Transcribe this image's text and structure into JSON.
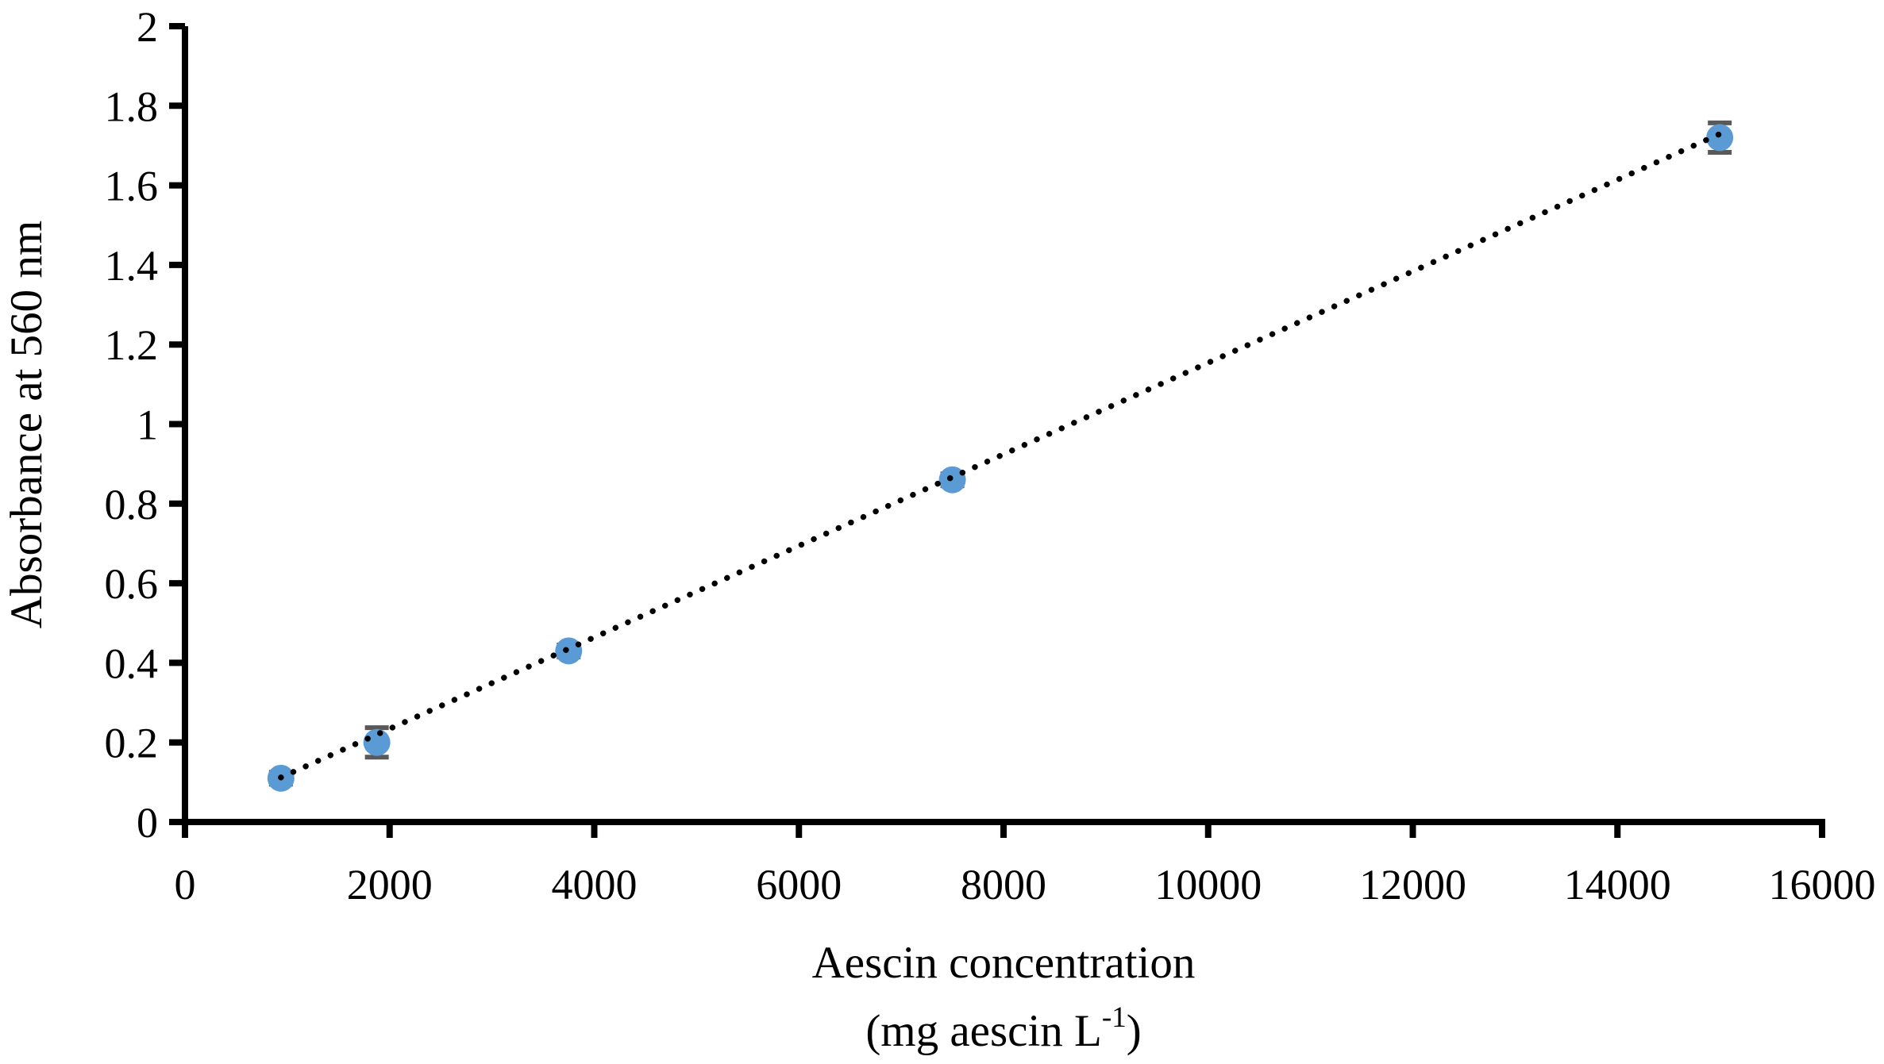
{
  "figure": {
    "background": "#ffffff"
  },
  "chart_data": {
    "type": "scatter",
    "title": "",
    "ylabel": "Absorbance at 560 nm",
    "xlabel_line1": "Aescin concentration",
    "xlabel_unit_prefix": "(mg aescin L",
    "xlabel_unit_sup": "-1",
    "xlabel_unit_suffix": ")",
    "xlim": [
      0,
      16000
    ],
    "ylim": [
      0,
      2
    ],
    "grid": false,
    "legend": "none",
    "axis_color": "#000000",
    "x_ticks": [
      {
        "value": 0,
        "label": "0"
      },
      {
        "value": 2000,
        "label": "2000"
      },
      {
        "value": 4000,
        "label": "4000"
      },
      {
        "value": 6000,
        "label": "6000"
      },
      {
        "value": 8000,
        "label": "8000"
      },
      {
        "value": 10000,
        "label": "10000"
      },
      {
        "value": 12000,
        "label": "12000"
      },
      {
        "value": 14000,
        "label": "14000"
      },
      {
        "value": 16000,
        "label": "16000"
      }
    ],
    "y_ticks": [
      {
        "value": 0,
        "label": "0"
      },
      {
        "value": 0.2,
        "label": "0.2"
      },
      {
        "value": 0.4,
        "label": "0.4"
      },
      {
        "value": 0.6,
        "label": "0.6"
      },
      {
        "value": 0.8,
        "label": "0.8"
      },
      {
        "value": 1,
        "label": "1"
      },
      {
        "value": 1.2,
        "label": "1.2"
      },
      {
        "value": 1.4,
        "label": "1.4"
      },
      {
        "value": 1.6,
        "label": "1.6"
      },
      {
        "value": 1.8,
        "label": "1.8"
      },
      {
        "value": 2,
        "label": "2"
      }
    ],
    "series": [
      {
        "name": "absorbance-calibration-points",
        "marker": "circle",
        "marker_color": "#5B9BD5",
        "error_bar_color": "#595959",
        "points": [
          {
            "x": 937.5,
            "y": 0.11,
            "y_err": 0.015
          },
          {
            "x": 1875,
            "y": 0.2,
            "y_err": 0.037
          },
          {
            "x": 3750,
            "y": 0.43,
            "y_err": 0.015
          },
          {
            "x": 7500,
            "y": 0.86,
            "y_err": 0.015
          },
          {
            "x": 15000,
            "y": 1.72,
            "y_err": 0.037
          }
        ]
      }
    ],
    "trendline": {
      "style": "dotted",
      "color": "#000000",
      "x1": 937.5,
      "y1": 0.112,
      "x2": 15000,
      "y2": 1.729
    }
  }
}
